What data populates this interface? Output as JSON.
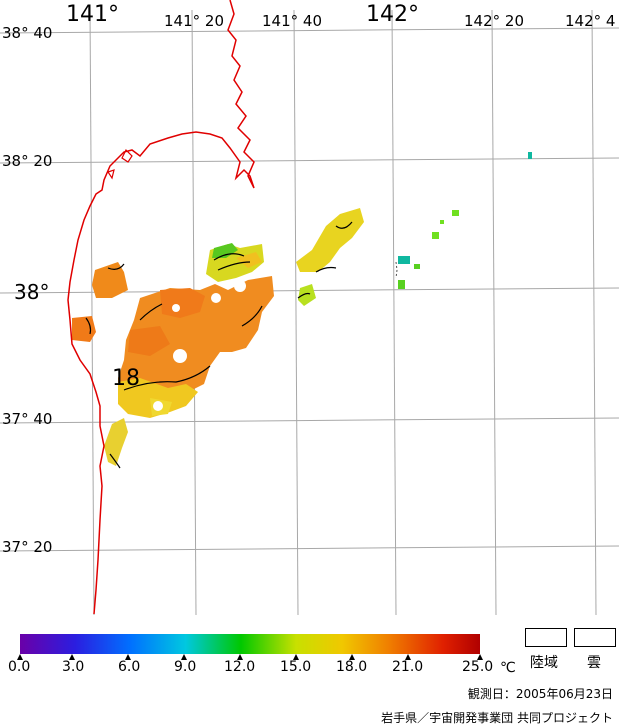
{
  "map": {
    "longitude_labels": [
      {
        "text": "141°",
        "style": "big"
      },
      {
        "text": "141° 20",
        "style": "small"
      },
      {
        "text": "141° 40",
        "style": "small"
      },
      {
        "text": "142°",
        "style": "big"
      },
      {
        "text": "142° 20",
        "style": "small"
      },
      {
        "text": "142° 4",
        "style": "small"
      }
    ],
    "latitude_labels": [
      {
        "text": "38° 40",
        "style": "small"
      },
      {
        "text": "38° 20",
        "style": "small"
      },
      {
        "text": "38°",
        "style": "big"
      },
      {
        "text": "37° 40",
        "style": "small"
      },
      {
        "text": "37° 20",
        "style": "small"
      }
    ],
    "contour_label": "18",
    "coastline_color": "#e00000"
  },
  "colorbar": {
    "ticks": [
      "0.0",
      "3.0",
      "6.0",
      "9.0",
      "12.0",
      "15.0",
      "18.0",
      "21.0",
      "25.0"
    ],
    "unit": "℃",
    "colors": [
      "#6a00a8",
      "#2b1ee0",
      "#0070ff",
      "#00c8e0",
      "#00c800",
      "#c8e000",
      "#f0c800",
      "#f08000",
      "#e02000",
      "#b00000"
    ]
  },
  "legend": {
    "land_label": "陸域",
    "cloud_label": "雲"
  },
  "footer": {
    "date": "観測日：2005年06月23日",
    "credit": "岩手県／宇宙開発事業団 共同プロジェクト"
  }
}
